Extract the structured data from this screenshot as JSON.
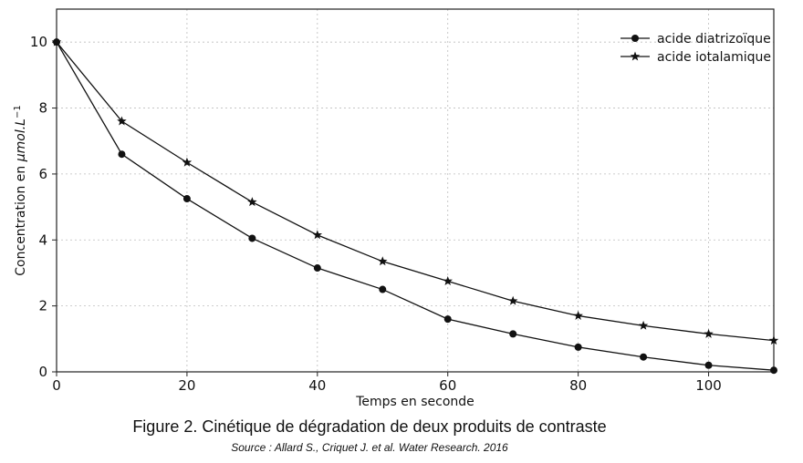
{
  "chart_data": {
    "type": "line",
    "xlabel": "Temps en seconde",
    "ylabel_prefix": "Concentration en ",
    "ylabel_unit": "μmol.L",
    "ylabel_exponent": "−1",
    "xlim": [
      0,
      110
    ],
    "ylim": [
      0,
      11
    ],
    "xticks": [
      0,
      20,
      40,
      60,
      80,
      100
    ],
    "yticks": [
      0,
      2,
      4,
      6,
      8,
      10
    ],
    "grid": true,
    "legend_position": "top-right",
    "x": [
      0,
      10,
      20,
      30,
      40,
      50,
      60,
      70,
      80,
      90,
      100,
      110
    ],
    "series": [
      {
        "name": "acide diatrizoïque",
        "marker": "circle",
        "values": [
          10,
          6.6,
          5.25,
          4.05,
          3.15,
          2.5,
          1.6,
          1.15,
          0.75,
          0.45,
          0.2,
          0.05
        ]
      },
      {
        "name": "acide iotalamique",
        "marker": "star",
        "values": [
          10,
          7.6,
          6.35,
          5.15,
          4.15,
          3.35,
          2.75,
          2.15,
          1.7,
          1.4,
          1.15,
          0.95
        ]
      }
    ]
  },
  "caption": {
    "title": "Figure 2. Cinétique de dégradation de deux produits de contraste",
    "source": "Source : Allard S., Criquet J. et al. Water Research. 2016"
  }
}
